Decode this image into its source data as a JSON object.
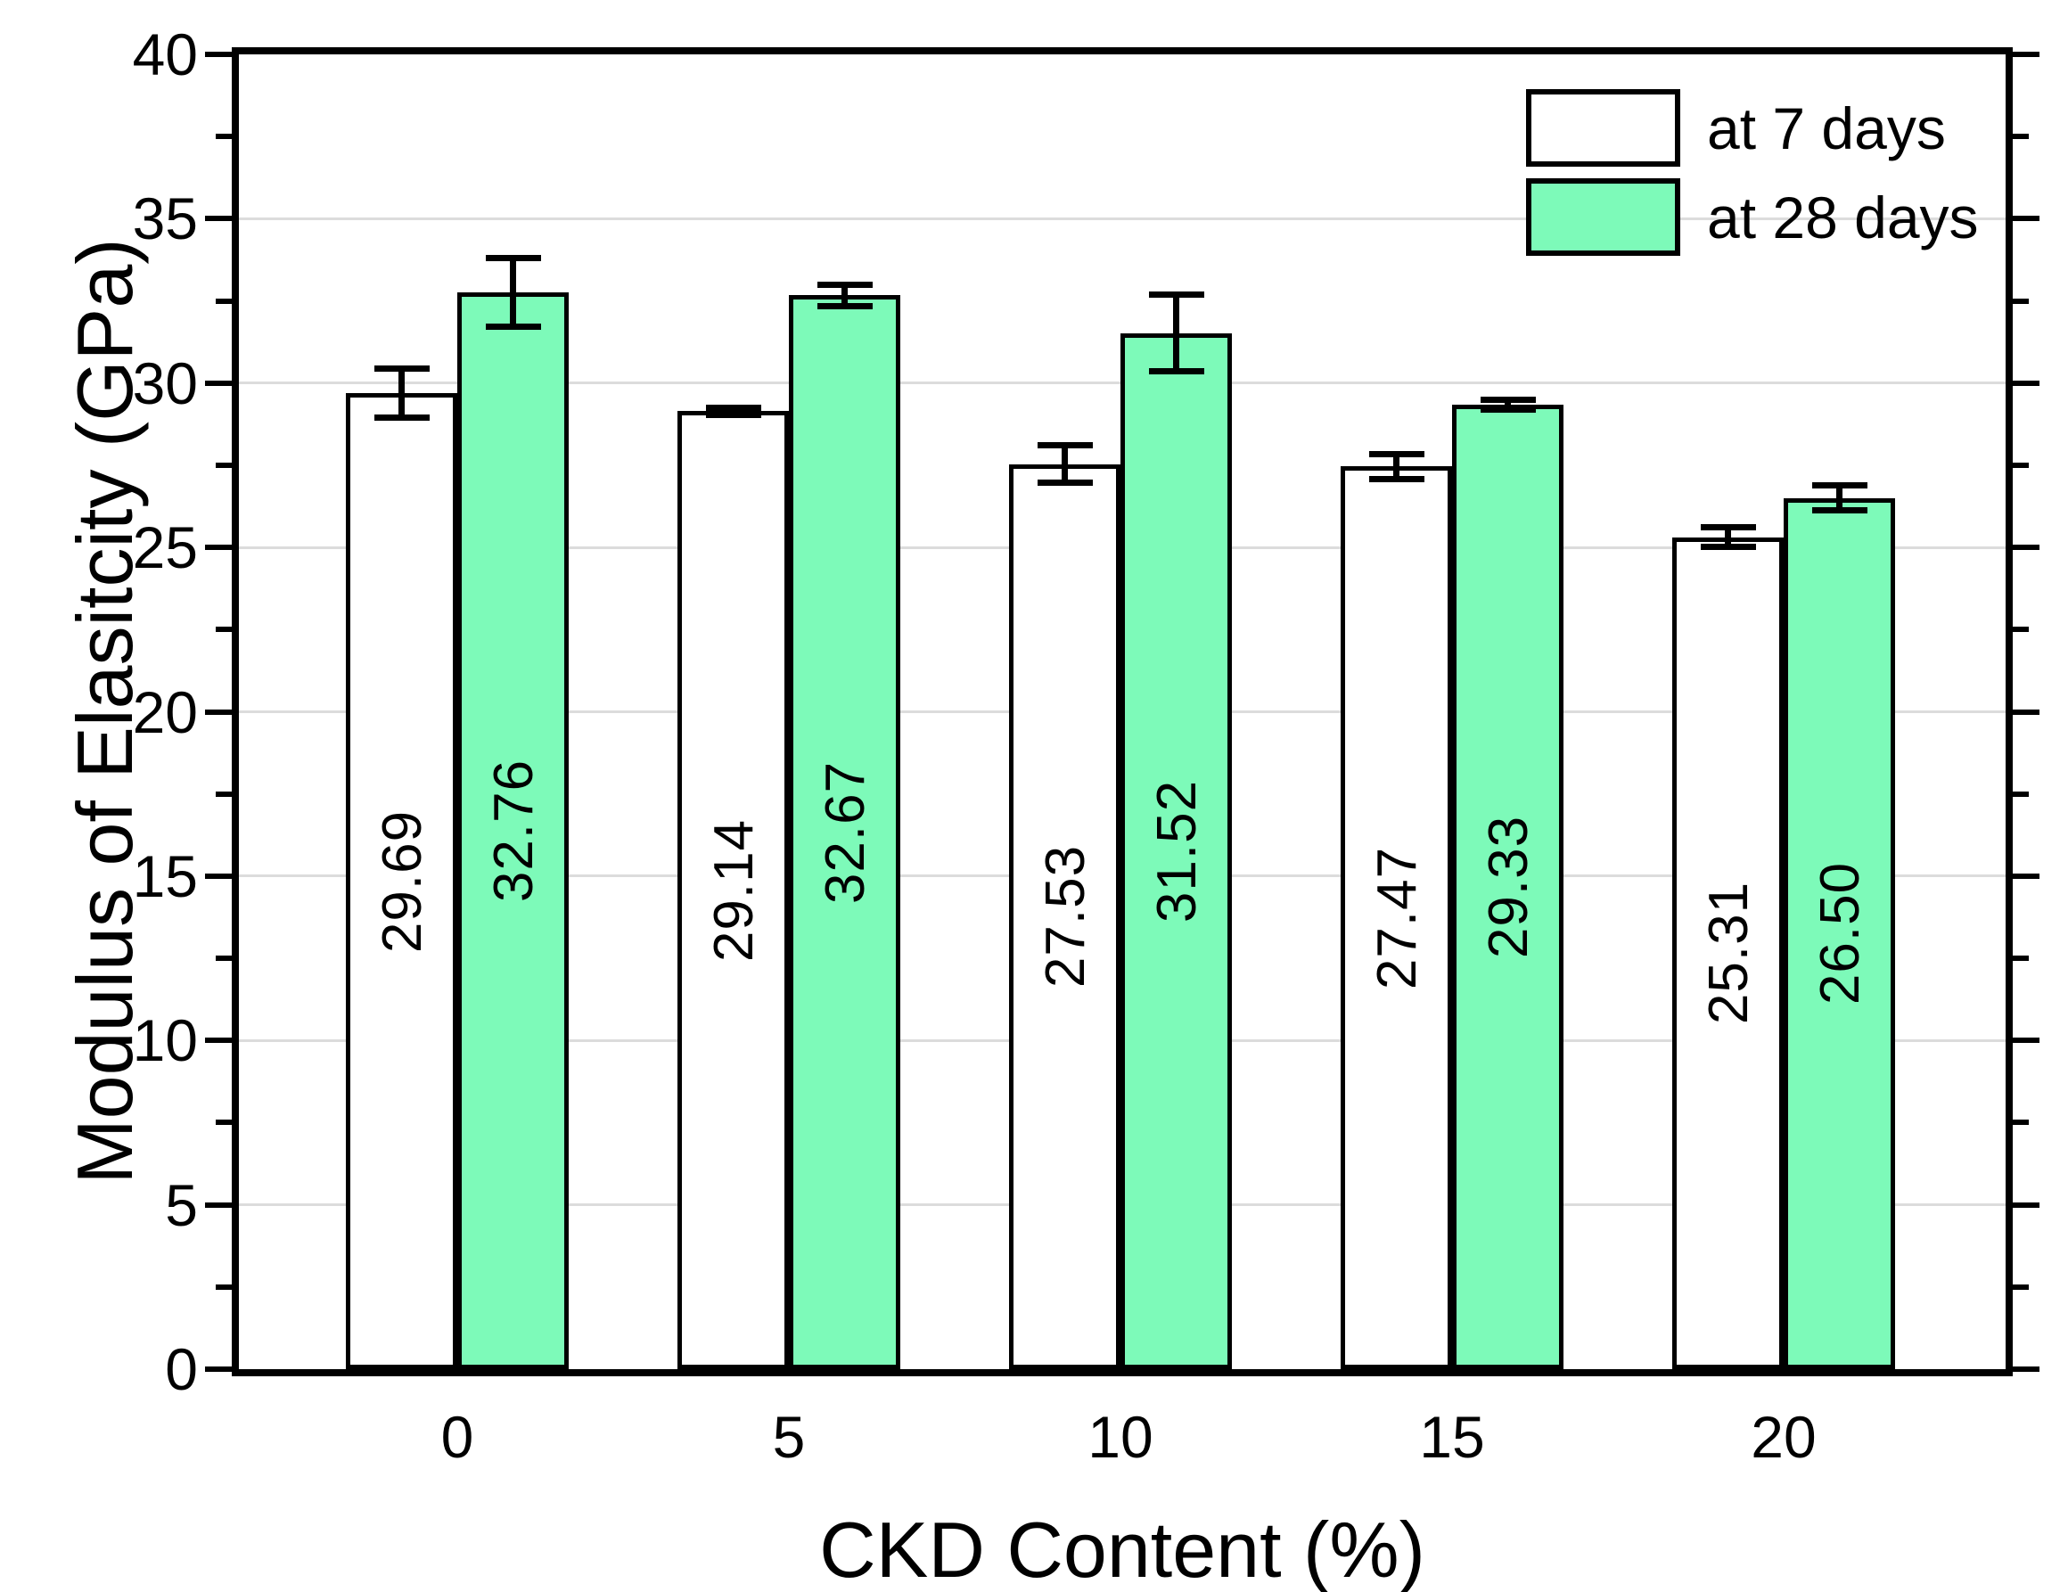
{
  "chart_data": {
    "type": "bar",
    "title": "",
    "xlabel": "CKD Content (%)",
    "ylabel": "Modulus of Elasitcity (GPa)",
    "categories": [
      "0",
      "5",
      "10",
      "15",
      "20"
    ],
    "series": [
      {
        "name": "at 7 days",
        "fill": "#FFFFFF",
        "values": [
          29.69,
          29.14,
          27.53,
          27.47,
          25.31
        ],
        "errors": [
          0.75,
          0.12,
          0.57,
          0.38,
          0.3
        ],
        "labels": [
          "29.69",
          "29.14",
          "27.53",
          "27.47",
          "25.31"
        ]
      },
      {
        "name": "at 28 days",
        "fill": "#7DFAB9",
        "values": [
          32.76,
          32.67,
          31.52,
          29.33,
          26.5
        ],
        "errors": [
          1.05,
          0.33,
          1.17,
          0.15,
          0.38
        ],
        "labels": [
          "32.76",
          "32.67",
          "31.52",
          "29.33",
          "26.50"
        ]
      }
    ],
    "ylim": [
      0,
      40
    ],
    "ytick_major": 5,
    "ytick_minor": 2.5,
    "grid": true,
    "legend_position": "top-right"
  },
  "colors": {
    "background": "#FFFFFF",
    "axis": "#000000",
    "grid": "#DCDCDC",
    "text": "#000000",
    "bar_outline": "#000000",
    "series_7_days": "#FFFFFF",
    "series_28_days": "#7DFAB9"
  }
}
